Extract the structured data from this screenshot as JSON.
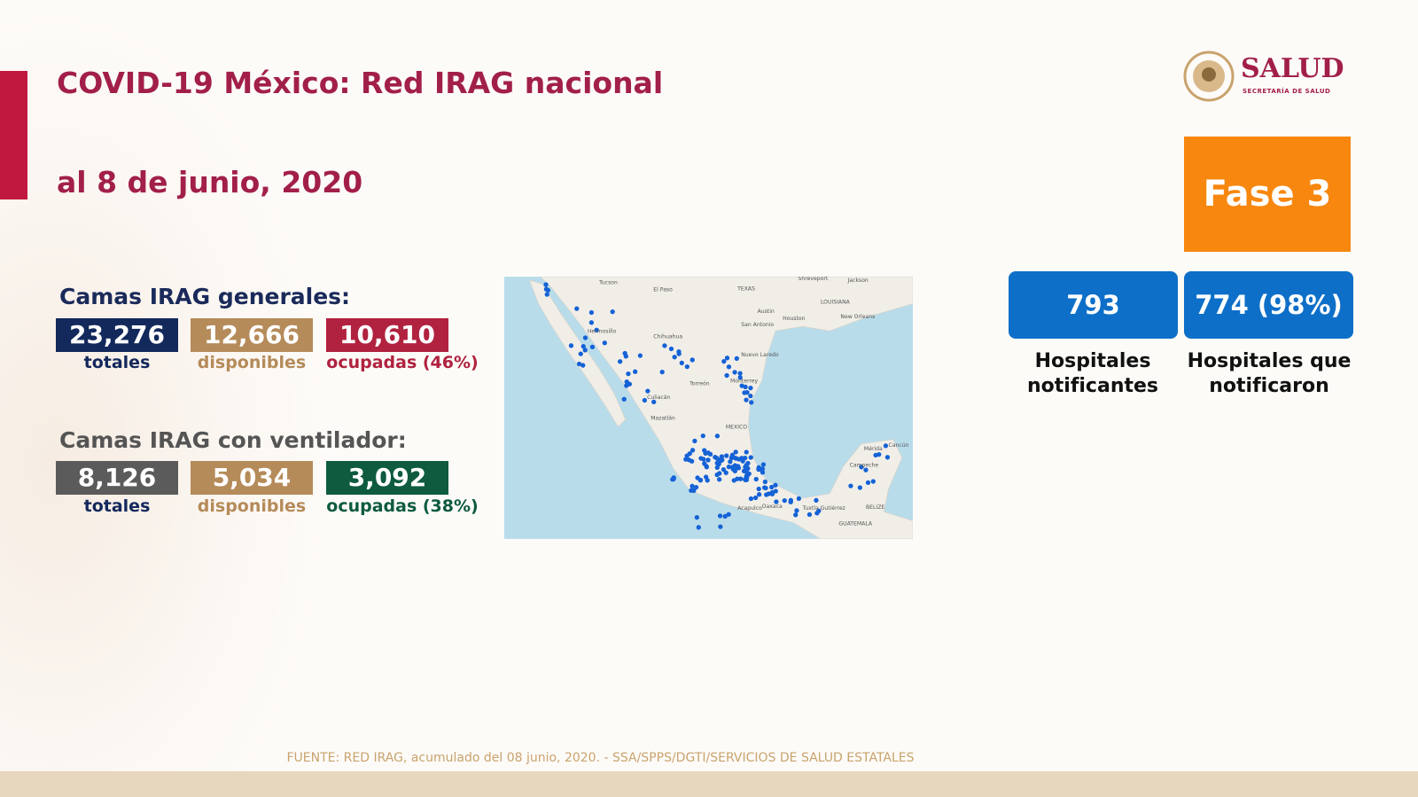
{
  "header": {
    "title": "COVID-19 México: Red IRAG nacional",
    "date": "al 8 de junio, 2020",
    "logo": "SALUD",
    "logo_sub": "SECRETARÍA DE SALUD",
    "phase": "Fase 3"
  },
  "general": {
    "title": "Camas IRAG generales:",
    "boxes": [
      {
        "value": "23,276",
        "label": "totales"
      },
      {
        "value": "12,666",
        "label": "disponibles"
      },
      {
        "value": "10,610",
        "label": "ocupadas (46%)"
      }
    ]
  },
  "ventilator": {
    "title": "Camas IRAG con ventilador:",
    "boxes": [
      {
        "value": "8,126",
        "label": "totales"
      },
      {
        "value": "5,034",
        "label": "disponibles"
      },
      {
        "value": "3,092",
        "label": "ocupadas (38%)"
      }
    ]
  },
  "hospitals": [
    {
      "value": "793",
      "label": "Hospitales notificantes"
    },
    {
      "value": "774 (98%)",
      "label": "Hospitales que notificaron"
    }
  ],
  "map": {
    "labels": [
      "Tucson",
      "El Paso",
      "TEXAS",
      "Shreveport",
      "Jackson",
      "LOUISIANA",
      "Austin",
      "San Antonio",
      "Houston",
      "New Orleans",
      "Hermosillo",
      "Chihuahua",
      "Nuevo Laredo",
      "Monterrey",
      "Torreón",
      "Culiacán",
      "Mazatlán",
      "MEXICO",
      "Acapulco",
      "Oaxaca",
      "Tuxtla Gutiérrez",
      "GUATEMALA",
      "BELIZE",
      "Mérida",
      "Campeche",
      "Cancún"
    ]
  },
  "footer": "FUENTE: RED IRAG, acumulado del 08 junio, 2020. -  SSA/SPPS/DGTI/SERVICIOS DE SALUD ESTATALES"
}
